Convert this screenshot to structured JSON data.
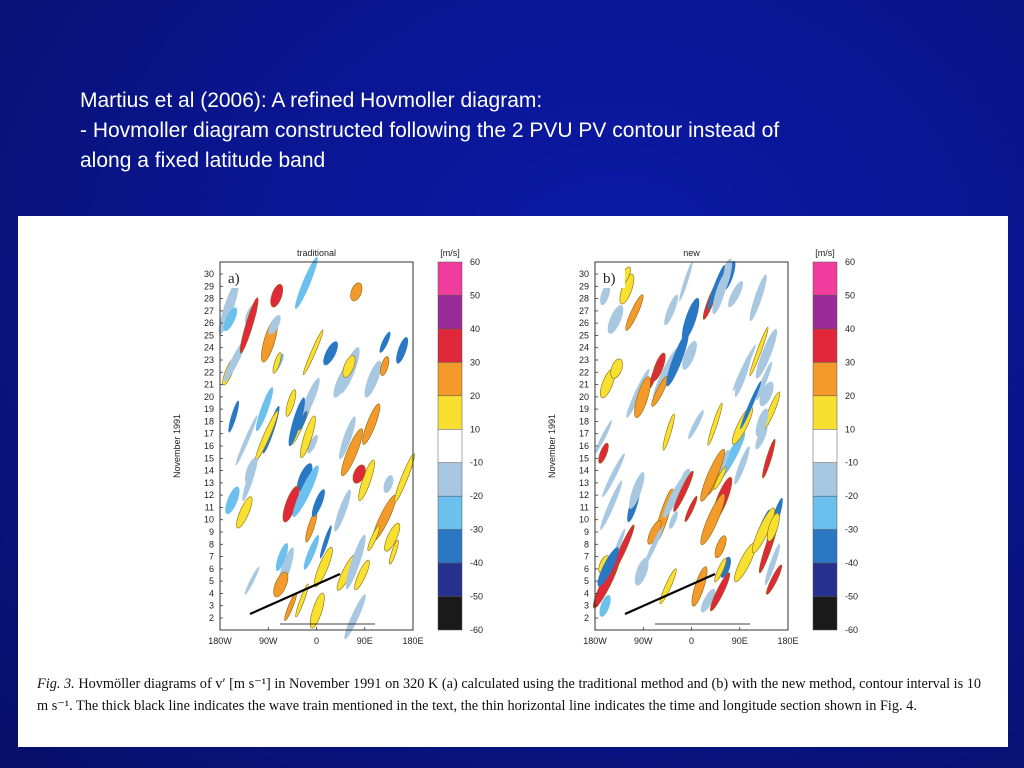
{
  "slide": {
    "line1": "Martius et al (2006): A refined Hovmoller diagram:",
    "line2": "- Hovmoller diagram constructed following the 2 PVU PV contour instead of",
    "line3": "along a fixed latitude band"
  },
  "figure": {
    "panels": [
      {
        "title": "traditional",
        "letter": "a)",
        "unit": "[m/s]"
      },
      {
        "title": "new",
        "letter": "b)",
        "unit": "[m/s]"
      }
    ],
    "ylabel": "November 1991",
    "y_ticks": [
      "30",
      "29",
      "28",
      "27",
      "26",
      "25",
      "24",
      "23",
      "22",
      "21",
      "20",
      "19",
      "18",
      "17",
      "16",
      "15",
      "14",
      "13",
      "12",
      "11",
      "10",
      "9",
      "8",
      "7",
      "6",
      "5",
      "4",
      "3",
      "2"
    ],
    "x_ticks": [
      "180W",
      "90W",
      "0",
      "90E",
      "180E"
    ],
    "colorbar": {
      "labels": [
        "60",
        "50",
        "40",
        "30",
        "20",
        "10",
        "-10",
        "-20",
        "-30",
        "-40",
        "-50",
        "-60"
      ],
      "colors": [
        "#f03c9c",
        "#9a2a98",
        "#e0283a",
        "#f49a2a",
        "#f8e030",
        "#ffffff",
        "#a8c8e2",
        "#6cc0ee",
        "#2a78c4",
        "#26308e",
        "#1a1a1a"
      ]
    },
    "caption": {
      "figlabel": "Fig. 3.",
      "text": "Hovmöller diagrams of v′ [m s⁻¹] in November 1991 on 320 K (a) calculated using the traditional method and (b) with the new method, contour interval is 10 m s⁻¹. The thick black line indicates the wave train mentioned in the text, the thin horizontal line indicates the time and longitude section shown in Fig. 4."
    }
  }
}
